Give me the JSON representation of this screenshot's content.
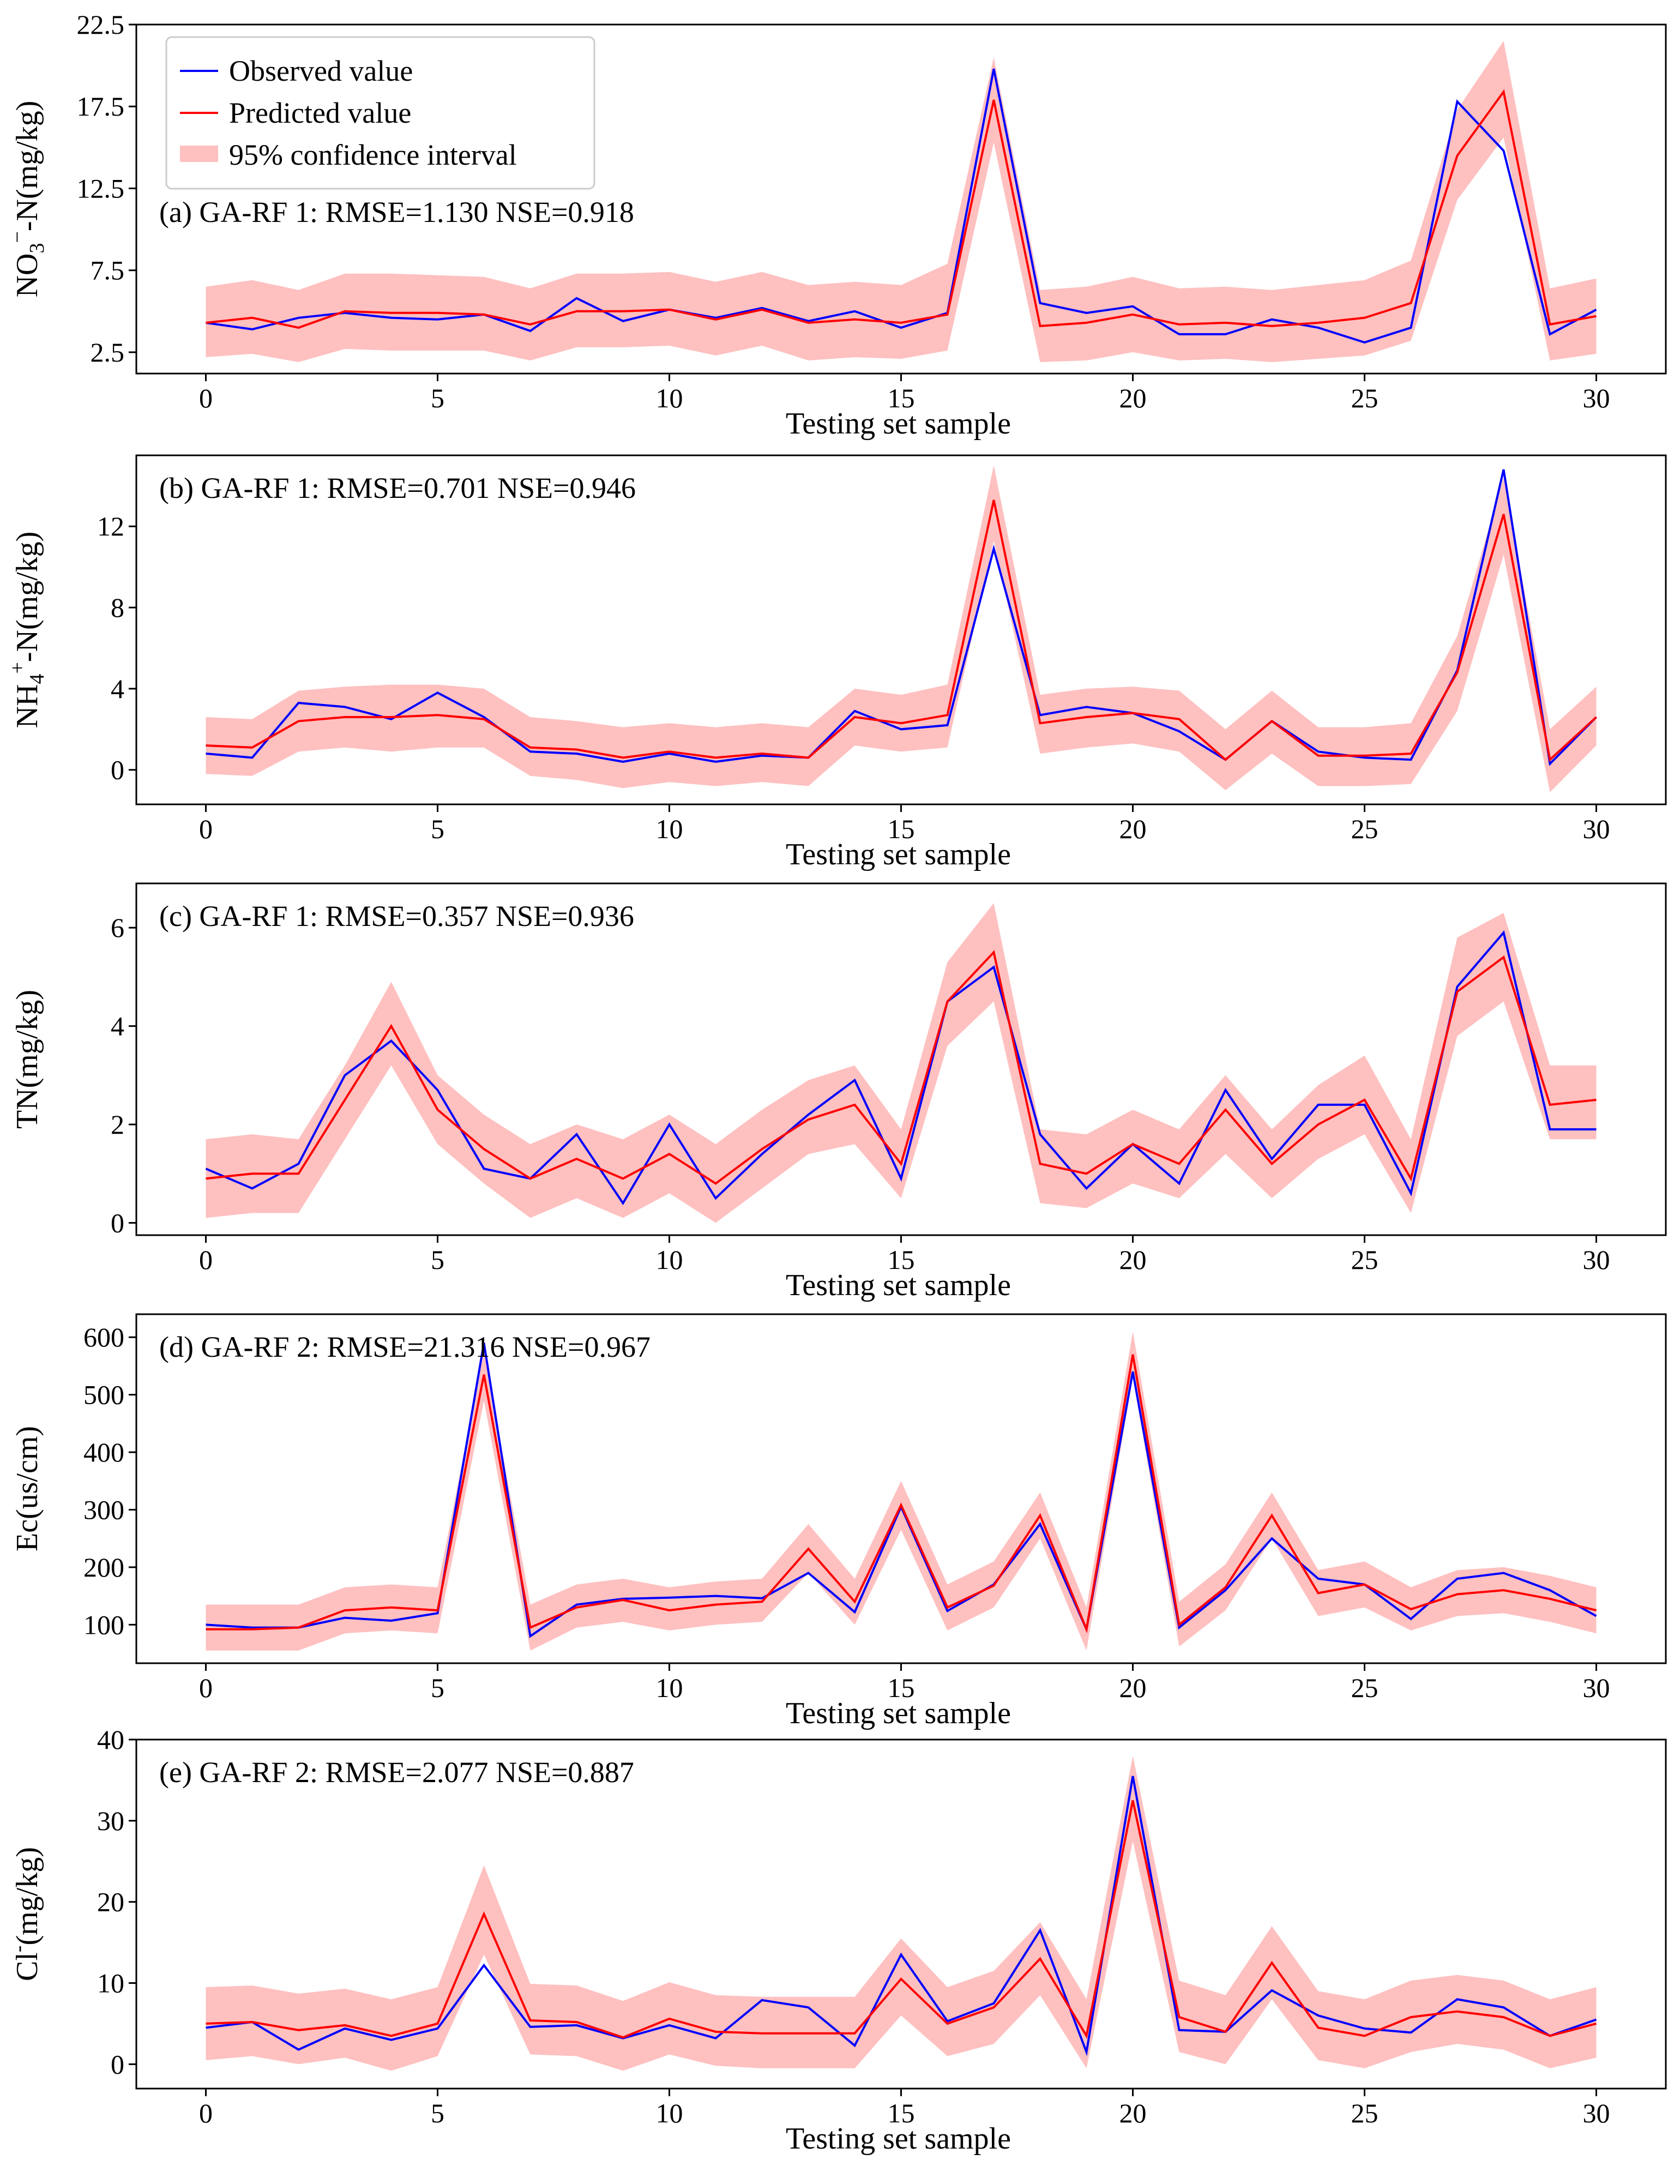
{
  "colors": {
    "observed": "#0000ff",
    "predicted": "#ff0000",
    "band": "#ffc0c0"
  },
  "legend": {
    "observed": "Observed value",
    "predicted": "Predicted value",
    "band": "95% confidence interval"
  },
  "chart_data": [
    {
      "type": "line",
      "panel": "a",
      "title": "(a) GA-RF 1: RMSE=1.130  NSE=0.918",
      "xlabel": "Testing set sample",
      "ylabel": "NO3−-N(mg/kg)",
      "ylabel_parts": {
        "pre": "NO",
        "sub": "3",
        "sup": "−",
        "post": "-N(mg/kg)"
      },
      "xlim": [
        -1.5,
        31.5
      ],
      "ylim": [
        1.2,
        22.5
      ],
      "xticks": [
        0,
        5,
        10,
        15,
        20,
        25,
        30
      ],
      "yticks": [
        2.5,
        7.5,
        12.5,
        17.5,
        22.5
      ],
      "ytick_labels": [
        "2.5",
        "7.5",
        "12.5",
        "17.5",
        "22.5"
      ],
      "x": [
        0,
        1,
        2,
        3,
        4,
        5,
        6,
        7,
        8,
        9,
        10,
        11,
        12,
        13,
        14,
        15,
        16,
        17,
        18,
        19,
        20,
        21,
        22,
        23,
        24,
        25,
        26,
        27,
        28,
        29,
        30
      ],
      "series": [
        {
          "name": "Observed value",
          "values": [
            4.3,
            3.9,
            4.6,
            4.9,
            4.6,
            4.5,
            4.8,
            3.8,
            5.8,
            4.4,
            5.1,
            4.6,
            5.2,
            4.4,
            5.0,
            4.0,
            4.9,
            19.8,
            5.5,
            4.9,
            5.3,
            3.6,
            3.6,
            4.5,
            4.0,
            3.1,
            4.0,
            17.8,
            14.8,
            3.6,
            5.1
          ]
        },
        {
          "name": "Predicted value",
          "values": [
            4.3,
            4.6,
            4.0,
            5.0,
            4.9,
            4.9,
            4.8,
            4.2,
            5.0,
            5.0,
            5.1,
            4.5,
            5.1,
            4.3,
            4.5,
            4.3,
            4.8,
            17.9,
            4.1,
            4.3,
            4.8,
            4.2,
            4.3,
            4.1,
            4.3,
            4.6,
            5.5,
            14.5,
            18.4,
            4.2,
            4.7
          ]
        }
      ],
      "band": {
        "lower": [
          2.2,
          2.4,
          1.9,
          2.7,
          2.6,
          2.6,
          2.6,
          2.0,
          2.8,
          2.8,
          2.9,
          2.3,
          2.9,
          2.0,
          2.2,
          2.1,
          2.6,
          15.3,
          1.9,
          2.0,
          2.5,
          2.0,
          2.1,
          1.9,
          2.1,
          2.3,
          3.2,
          11.8,
          15.6,
          2.0,
          2.4
        ],
        "upper": [
          6.5,
          6.9,
          6.3,
          7.3,
          7.3,
          7.2,
          7.1,
          6.4,
          7.3,
          7.3,
          7.4,
          6.8,
          7.4,
          6.6,
          6.8,
          6.6,
          7.9,
          20.5,
          6.3,
          6.5,
          7.1,
          6.4,
          6.5,
          6.3,
          6.6,
          6.9,
          8.1,
          17.3,
          21.5,
          6.4,
          7.0
        ]
      }
    },
    {
      "type": "line",
      "panel": "b",
      "title": "(b) GA-RF 1: RMSE=0.701  NSE=0.946",
      "xlabel": "Testing set sample",
      "ylabel": "NH4+-N(mg/kg)",
      "ylabel_parts": {
        "pre": "NH",
        "sub": "4",
        "sup": "+",
        "post": "-N(mg/kg)"
      },
      "xlim": [
        -1.5,
        31.5
      ],
      "ylim": [
        -1.7,
        15.5
      ],
      "xticks": [
        0,
        5,
        10,
        15,
        20,
        25,
        30
      ],
      "yticks": [
        0,
        4,
        8,
        12
      ],
      "ytick_labels": [
        "0",
        "4",
        "8",
        "12"
      ],
      "x": [
        0,
        1,
        2,
        3,
        4,
        5,
        6,
        7,
        8,
        9,
        10,
        11,
        12,
        13,
        14,
        15,
        16,
        17,
        18,
        19,
        20,
        21,
        22,
        23,
        24,
        25,
        26,
        27,
        28,
        29,
        30
      ],
      "series": [
        {
          "name": "Observed value",
          "values": [
            0.8,
            0.6,
            3.3,
            3.1,
            2.5,
            3.8,
            2.6,
            0.9,
            0.8,
            0.4,
            0.8,
            0.4,
            0.7,
            0.6,
            2.9,
            2.0,
            2.2,
            10.9,
            2.7,
            3.1,
            2.8,
            1.9,
            0.5,
            2.4,
            0.9,
            0.6,
            0.5,
            4.9,
            14.8,
            0.3,
            2.6
          ]
        },
        {
          "name": "Predicted value",
          "values": [
            1.2,
            1.1,
            2.4,
            2.6,
            2.6,
            2.7,
            2.5,
            1.1,
            1.0,
            0.6,
            0.9,
            0.6,
            0.8,
            0.6,
            2.6,
            2.3,
            2.7,
            13.3,
            2.3,
            2.6,
            2.8,
            2.5,
            0.5,
            2.4,
            0.7,
            0.7,
            0.8,
            4.8,
            12.6,
            0.5,
            2.6
          ]
        }
      ],
      "band": {
        "lower": [
          -0.2,
          -0.3,
          0.9,
          1.1,
          0.9,
          1.1,
          1.1,
          -0.3,
          -0.5,
          -0.9,
          -0.6,
          -0.8,
          -0.6,
          -0.8,
          1.2,
          0.9,
          1.1,
          11.3,
          0.8,
          1.1,
          1.3,
          0.9,
          -1.0,
          0.8,
          -0.8,
          -0.8,
          -0.7,
          2.9,
          10.6,
          -1.1,
          1.2
        ]
      },
      "band_upper_note": "",
      "band_upper": [
        2.6,
        2.5,
        3.9,
        4.1,
        4.2,
        4.2,
        4.0,
        2.6,
        2.4,
        2.1,
        2.3,
        2.1,
        2.3,
        2.1,
        4.0,
        3.7,
        4.2,
        15.0,
        3.7,
        4.0,
        4.1,
        3.9,
        2.0,
        3.9,
        2.1,
        2.1,
        2.3,
        6.6,
        14.4,
        2.0,
        4.1
      ]
    },
    {
      "type": "line",
      "panel": "c",
      "title": "(c) GA-RF 1: RMSE=0.357  NSE=0.936",
      "xlabel": "Testing set sample",
      "ylabel": "TN(mg/kg)",
      "xlim": [
        -1.5,
        31.5
      ],
      "ylim": [
        -0.25,
        6.9
      ],
      "xticks": [
        0,
        5,
        10,
        15,
        20,
        25,
        30
      ],
      "yticks": [
        0,
        2,
        4,
        6
      ],
      "ytick_labels": [
        "0",
        "2",
        "4",
        "6"
      ],
      "x": [
        0,
        1,
        2,
        3,
        4,
        5,
        6,
        7,
        8,
        9,
        10,
        11,
        12,
        13,
        14,
        15,
        16,
        17,
        18,
        19,
        20,
        21,
        22,
        23,
        24,
        25,
        26,
        27,
        28,
        29,
        30
      ],
      "series": [
        {
          "name": "Observed value",
          "values": [
            1.1,
            0.7,
            1.2,
            3.0,
            3.7,
            2.7,
            1.1,
            0.9,
            1.8,
            0.4,
            2.0,
            0.5,
            1.4,
            2.2,
            2.9,
            0.9,
            4.5,
            5.2,
            1.8,
            0.7,
            1.6,
            0.8,
            2.7,
            1.3,
            2.4,
            2.4,
            0.6,
            4.8,
            5.9,
            1.9,
            1.9
          ]
        },
        {
          "name": "Predicted value",
          "values": [
            0.9,
            1.0,
            1.0,
            2.5,
            4.0,
            2.3,
            1.5,
            0.9,
            1.3,
            0.9,
            1.4,
            0.8,
            1.5,
            2.1,
            2.4,
            1.2,
            4.5,
            5.5,
            1.2,
            1.0,
            1.6,
            1.2,
            2.3,
            1.2,
            2.0,
            2.5,
            0.9,
            4.7,
            5.4,
            2.4,
            2.5
          ]
        }
      ],
      "band": {
        "lower": [
          0.1,
          0.2,
          0.2,
          1.7,
          3.2,
          1.6,
          0.8,
          0.1,
          0.5,
          0.1,
          0.6,
          0.0,
          0.7,
          1.4,
          1.6,
          0.5,
          3.6,
          4.5,
          0.4,
          0.3,
          0.8,
          0.5,
          1.4,
          0.5,
          1.3,
          1.8,
          0.2,
          3.8,
          4.5,
          1.7,
          1.7
        ],
        "upper": [
          1.7,
          1.8,
          1.7,
          3.2,
          4.9,
          3.0,
          2.2,
          1.6,
          2.0,
          1.7,
          2.2,
          1.6,
          2.3,
          2.9,
          3.2,
          1.9,
          5.3,
          6.5,
          1.9,
          1.8,
          2.3,
          1.9,
          3.0,
          1.9,
          2.8,
          3.4,
          1.7,
          5.8,
          6.3,
          3.2,
          3.2
        ]
      }
    },
    {
      "type": "line",
      "panel": "d",
      "title": "(d) GA-RF 2: RMSE=21.316  NSE=0.967",
      "xlabel": "Testing set sample",
      "ylabel": "Ec(us/cm)",
      "xlim": [
        -1.5,
        31.5
      ],
      "ylim": [
        33,
        640
      ],
      "xticks": [
        0,
        5,
        10,
        15,
        20,
        25,
        30
      ],
      "yticks": [
        100,
        200,
        300,
        400,
        500,
        600
      ],
      "ytick_labels": [
        "100",
        "200",
        "300",
        "400",
        "500",
        "600"
      ],
      "x": [
        0,
        1,
        2,
        3,
        4,
        5,
        6,
        7,
        8,
        9,
        10,
        11,
        12,
        13,
        14,
        15,
        16,
        17,
        18,
        19,
        20,
        21,
        22,
        23,
        24,
        25,
        26,
        27,
        28,
        29,
        30
      ],
      "series": [
        {
          "name": "Observed value",
          "values": [
            100,
            95,
            95,
            112,
            107,
            120,
            590,
            80,
            135,
            145,
            147,
            150,
            146,
            190,
            122,
            305,
            124,
            170,
            275,
            92,
            540,
            95,
            160,
            250,
            180,
            170,
            110,
            180,
            190,
            160,
            115
          ]
        },
        {
          "name": "Predicted value",
          "values": [
            92,
            92,
            95,
            125,
            130,
            125,
            535,
            95,
            130,
            143,
            125,
            135,
            140,
            232,
            140,
            308,
            130,
            168,
            290,
            92,
            570,
            100,
            165,
            290,
            155,
            170,
            127,
            153,
            160,
            145,
            125
          ]
        }
      ],
      "band": {
        "lower": [
          55,
          55,
          55,
          85,
          90,
          85,
          490,
          55,
          95,
          105,
          90,
          100,
          105,
          190,
          100,
          265,
          90,
          130,
          250,
          55,
          530,
          62,
          125,
          250,
          115,
          130,
          90,
          115,
          120,
          105,
          85
        ],
        "upper": [
          135,
          135,
          135,
          165,
          170,
          165,
          575,
          135,
          170,
          180,
          165,
          175,
          180,
          275,
          180,
          350,
          170,
          210,
          330,
          130,
          610,
          140,
          205,
          330,
          195,
          210,
          165,
          195,
          200,
          185,
          165
        ]
      }
    },
    {
      "type": "line",
      "panel": "e",
      "title": "(e) GA-RF 2: RMSE=2.077  NSE=0.887",
      "xlabel": "Testing set sample",
      "ylabel": "Cl-(mg/kg)",
      "ylabel_parts": {
        "pre": "Cl",
        "sup": "-",
        "post": "(mg/kg)"
      },
      "xlim": [
        -1.5,
        31.5
      ],
      "ylim": [
        -3,
        40
      ],
      "xticks": [
        0,
        5,
        10,
        15,
        20,
        25,
        30
      ],
      "yticks": [
        0,
        10,
        20,
        30,
        40
      ],
      "ytick_labels": [
        "0",
        "10",
        "20",
        "30",
        "40"
      ],
      "x": [
        0,
        1,
        2,
        3,
        4,
        5,
        6,
        7,
        8,
        9,
        10,
        11,
        12,
        13,
        14,
        15,
        16,
        17,
        18,
        19,
        20,
        21,
        22,
        23,
        24,
        25,
        26,
        27,
        28,
        29,
        30
      ],
      "series": [
        {
          "name": "Observed value",
          "values": [
            4.5,
            5.2,
            1.8,
            4.4,
            3.0,
            4.4,
            12.2,
            4.6,
            4.8,
            3.2,
            4.8,
            3.2,
            7.9,
            7.0,
            2.3,
            13.5,
            5.3,
            7.5,
            16.5,
            1.5,
            35.5,
            4.2,
            4.0,
            9.1,
            6.0,
            4.4,
            3.9,
            8.0,
            7.0,
            3.5,
            5.5
          ]
        },
        {
          "name": "Predicted value",
          "values": [
            5.0,
            5.2,
            4.2,
            4.8,
            3.5,
            5.0,
            18.5,
            5.4,
            5.2,
            3.3,
            5.6,
            4.0,
            3.8,
            3.8,
            3.8,
            10.5,
            5.0,
            7.0,
            13.0,
            3.5,
            32.5,
            5.8,
            4.0,
            12.5,
            4.5,
            3.5,
            5.8,
            6.5,
            5.8,
            3.5,
            5.0
          ]
        }
      ],
      "band": {
        "lower": [
          0.5,
          1.0,
          0.0,
          0.8,
          -0.8,
          1.0,
          13.5,
          1.2,
          1.0,
          -0.8,
          1.2,
          -0.2,
          -0.5,
          -0.5,
          -0.5,
          6.0,
          1.0,
          2.5,
          8.5,
          -0.5,
          27.5,
          1.5,
          0.0,
          8.0,
          0.5,
          -0.5,
          1.5,
          2.5,
          1.8,
          -0.5,
          0.8
        ]
      },
      "band_upper": [
        9.5,
        9.7,
        8.7,
        9.3,
        8.0,
        9.5,
        24.5,
        9.9,
        9.7,
        7.8,
        10.1,
        8.5,
        8.3,
        8.3,
        8.3,
        15.5,
        9.5,
        11.5,
        17.5,
        8.0,
        38.0,
        10.3,
        8.5,
        17.0,
        9.0,
        8.0,
        10.3,
        11.0,
        10.3,
        8.0,
        9.5
      ]
    }
  ]
}
